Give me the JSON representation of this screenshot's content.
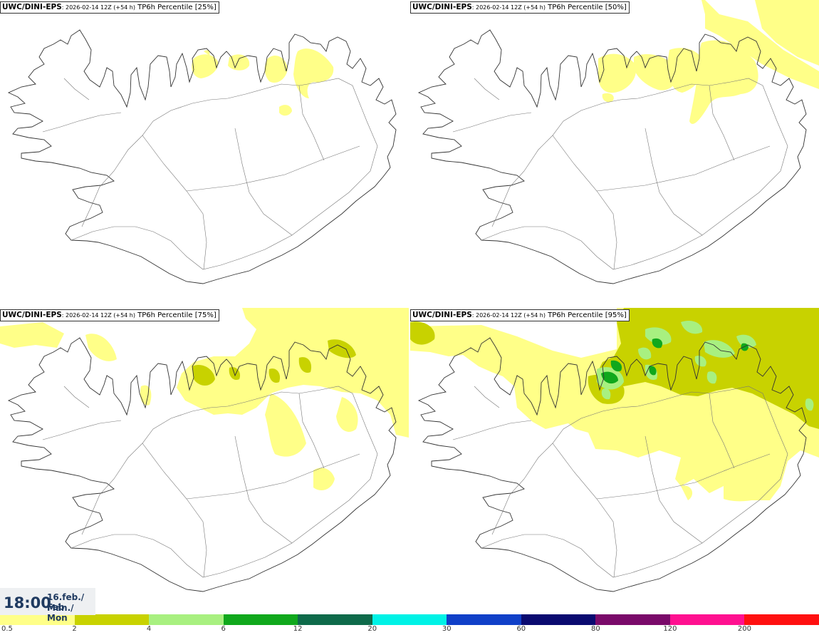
{
  "panels": [
    {
      "model": "UWC/DINI-EPS",
      "run": ": 2026-02-14 12Z (+54 h)",
      "field": " TP6h Percentile [25%]"
    },
    {
      "model": "UWC/DINI-EPS",
      "run": ": 2026-02-14 12Z (+54 h)",
      "field": " TP6h Percentile [50%]"
    },
    {
      "model": "UWC/DINI-EPS",
      "run": ": 2026-02-14 12Z (+54 h)",
      "field": " TP6h Percentile [75%]"
    },
    {
      "model": "UWC/DINI-EPS",
      "run": ": 2026-02-14 12Z (+54 h)",
      "field": " TP6h Percentile [95%]"
    }
  ],
  "valid_time": {
    "time": "18:00",
    "date_line1": "16.feb./ Feb",
    "date_line2": "Mán./ Mon"
  },
  "legend": {
    "ticks": [
      "0.5",
      "2",
      "4",
      "6",
      "12",
      "20",
      "30",
      "60",
      "80",
      "120",
      "200"
    ],
    "colors": [
      "#ffff88",
      "#c8d200",
      "#a8f080",
      "#10a81c",
      "#0e6a4a",
      "#00f2e6",
      "#1040c8",
      "#0a0a70",
      "#7a0a6a",
      "#ff1090",
      "#ff1010"
    ]
  },
  "colors": {
    "level_1": "#ffff88",
    "level_2": "#c8d200",
    "level_3": "#a8f080",
    "level_4": "#10a81c",
    "coast": "#333333",
    "roads": "#777777"
  }
}
